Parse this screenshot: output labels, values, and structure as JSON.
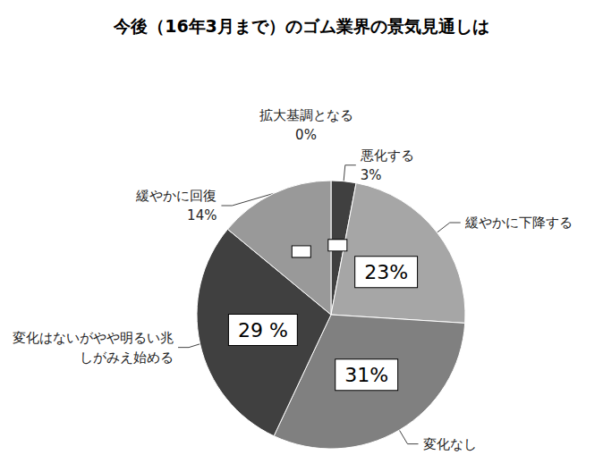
{
  "chart_data": {
    "type": "pie",
    "title": "今後（16年3月まで）のゴム業界の景気見通しは",
    "categories": [
      "拡大基調となる",
      "悪化する",
      "緩やかに下降する",
      "変化なし",
      "変化はないがやや明るい兆しがみえ始める",
      "緩やかに回復"
    ],
    "values": [
      0,
      3,
      23,
      31,
      29,
      14
    ],
    "value_labels": [
      "0%",
      "3%",
      "23%",
      "31%",
      "29 %",
      "14%"
    ],
    "colors": [
      "#595959",
      "#404040",
      "#a6a6a6",
      "#808080",
      "#404040",
      "#999999"
    ],
    "data_labels": true
  }
}
